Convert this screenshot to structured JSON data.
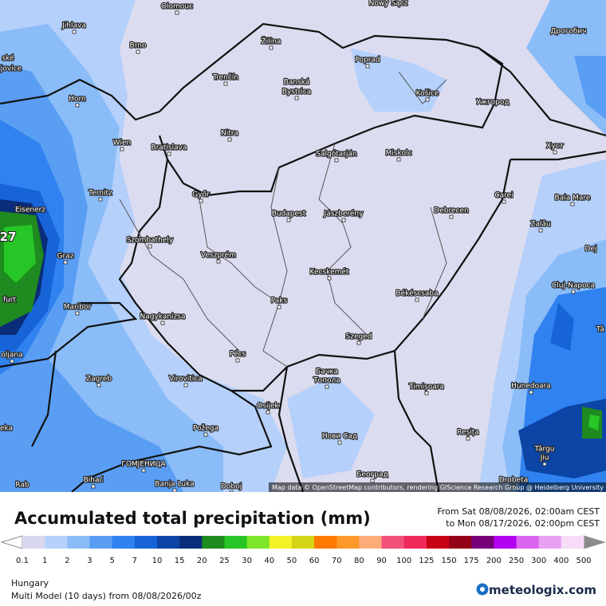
{
  "map": {
    "cities": [
      "Olomouc",
      "Nowy Sącz",
      "Jihlava",
      "Brno",
      "Žilina",
      "Poprad",
      "Дрогобич",
      "Trenčín",
      "Banská",
      "Bystrica",
      "Košice",
      "Ужгород",
      "Horn",
      "Nitra",
      "Wien",
      "Bratislava",
      "Salgótarján",
      "Miskolc",
      "Хуст",
      "Ternitz",
      "Győr",
      "Carei",
      "Baia Mare",
      "Eisenerz",
      "Budapest",
      "Jászberény",
      "Debrecen",
      "Szombathely",
      "Zalău",
      "Dej",
      "Graz",
      "Veszprém",
      "Kecskemét",
      "Cluj-Napoca",
      "Maribor",
      "Paks",
      "Békéscsaba",
      "Nagykanizsa",
      "Szeged",
      "Pécs",
      "Virovitica",
      "Бачка",
      "Топола",
      "Timișoara",
      "Zagreb",
      "Hunedoara",
      "Osijek",
      "Požega",
      "Reșița",
      "Нови Сад",
      "Târgu",
      "Jiu",
      "ГОМЈЕНИЦА",
      "Bihać",
      "Banja Luka",
      "Doboj",
      "Београд",
      "Drobeta",
      "ské",
      "jovice",
      "furt",
      "oljana",
      "eka",
      "Rab",
      "Tâ"
    ],
    "peak_label": "27",
    "credit": "Map data © OpenStreetMap contributors, rendering GIScience Research Group @ Heidelberg University"
  },
  "footer": {
    "title": "Accumulated total precipitation (mm)",
    "from": "From Sat 08/08/2026, 02:00am CEST",
    "to": "to Mon 08/17/2026, 02:00pm CEST",
    "region": "Hungary",
    "model": "Multi Model (10 days) from 08/08/2026/00z",
    "brand": "meteologix.com"
  },
  "legend": {
    "ticks": [
      0.1,
      1,
      2,
      3,
      5,
      7,
      10,
      15,
      20,
      25,
      30,
      40,
      50,
      60,
      70,
      80,
      90,
      100,
      125,
      150,
      175,
      200,
      250,
      300,
      400,
      500
    ],
    "colors": [
      "#d8d8ef",
      "#b5d0fa",
      "#8abcf8",
      "#5a9ef4",
      "#2f82ef",
      "#1764d8",
      "#0c45a6",
      "#0b2c78",
      "#1f8a1f",
      "#27c627",
      "#7de52a",
      "#f3f32a",
      "#d4d416",
      "#ff7a00",
      "#ff982a",
      "#ffab7a",
      "#f2517a",
      "#f02a5a",
      "#c80016",
      "#940016",
      "#760078",
      "#b400f0",
      "#db64f0",
      "#e7a2f2",
      "#f6dcf6"
    ]
  }
}
